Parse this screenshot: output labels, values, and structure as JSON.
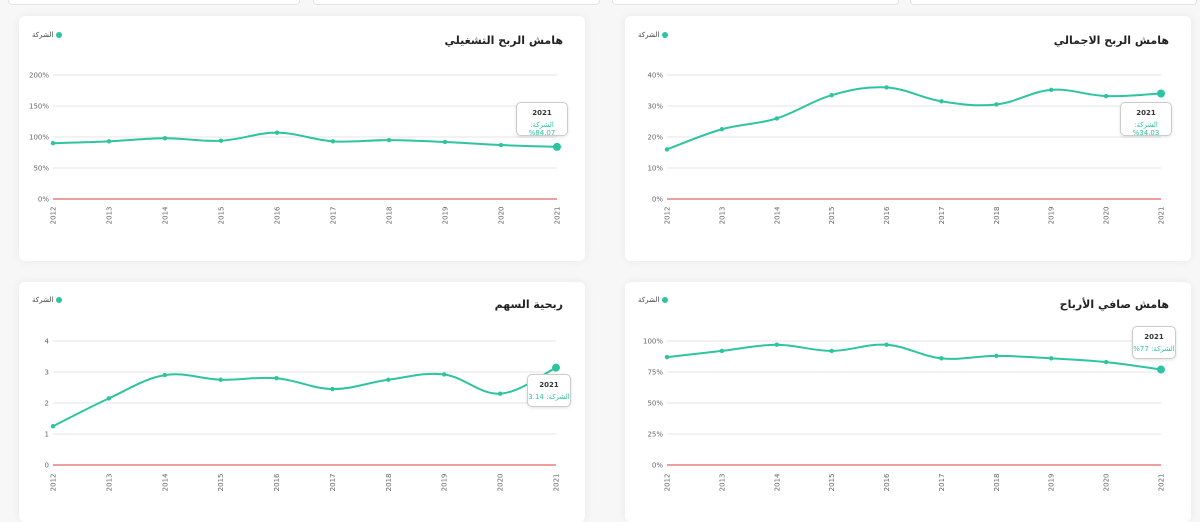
{
  "legend_label": "الشركة",
  "colors": {
    "series": "#2ec4a0",
    "zero_line": "#e06666",
    "grid": "#e5e5e5"
  },
  "chart_data": [
    {
      "id": "operating",
      "type": "line",
      "title": "هامش الربح التشغيلي",
      "x": [
        "2012",
        "2013",
        "2014",
        "2015",
        "2016",
        "2017",
        "2018",
        "2019",
        "2020",
        "2021"
      ],
      "series": [
        {
          "name": "الشركة",
          "values": [
            90,
            93,
            98,
            94,
            107,
            93,
            95,
            92,
            87,
            84.07
          ]
        }
      ],
      "ylim": [
        0,
        200
      ],
      "y_ticks": [
        0,
        50,
        100,
        150,
        200
      ],
      "y_tick_labels": [
        "0%",
        "50%",
        "100%",
        "150%",
        "200%"
      ],
      "tooltip": {
        "year": "2021",
        "label": "الشركة:",
        "value": "84.07%"
      }
    },
    {
      "id": "gross",
      "type": "line",
      "title": "هامش الربح الاجمالي",
      "x": [
        "2012",
        "2013",
        "2014",
        "2015",
        "2016",
        "2017",
        "2018",
        "2019",
        "2020",
        "2021"
      ],
      "series": [
        {
          "name": "الشركة",
          "values": [
            16,
            22.5,
            26,
            33.5,
            36,
            31.5,
            30.5,
            35.2,
            33.2,
            34.03
          ]
        }
      ],
      "ylim": [
        0,
        40
      ],
      "y_ticks": [
        0,
        10,
        20,
        30,
        40
      ],
      "y_tick_labels": [
        "0%",
        "10%",
        "20%",
        "30%",
        "40%"
      ],
      "tooltip": {
        "year": "2021",
        "label": "الشركة:",
        "value": "34.03%"
      }
    },
    {
      "id": "eps",
      "type": "line",
      "title": "ربحية السهم",
      "x": [
        "2012",
        "2013",
        "2014",
        "2015",
        "2016",
        "2017",
        "2018",
        "2019",
        "2020",
        "2021"
      ],
      "series": [
        {
          "name": "الشركة",
          "values": [
            1.25,
            2.15,
            2.9,
            2.75,
            2.8,
            2.45,
            2.75,
            2.92,
            2.3,
            3.14
          ]
        }
      ],
      "ylim": [
        0,
        4
      ],
      "y_ticks": [
        0,
        1,
        2,
        3,
        4
      ],
      "y_tick_labels": [
        "0",
        "1",
        "2",
        "3",
        "4"
      ],
      "tooltip": {
        "year": "2021",
        "label": "الشركة:",
        "value": "3.14"
      }
    },
    {
      "id": "net",
      "type": "line",
      "title": "هامش صافي الأرباح",
      "x": [
        "2012",
        "2013",
        "2014",
        "2015",
        "2016",
        "2017",
        "2018",
        "2019",
        "2020",
        "2021"
      ],
      "series": [
        {
          "name": "الشركة",
          "values": [
            87,
            92,
            97,
            92,
            97,
            86,
            88,
            86,
            83,
            77
          ]
        }
      ],
      "ylim": [
        0,
        100
      ],
      "y_ticks": [
        0,
        25,
        50,
        75,
        100
      ],
      "y_tick_labels": [
        "0%",
        "25%",
        "50%",
        "75%",
        "100%"
      ],
      "tooltip": {
        "year": "2021",
        "label": "الشركة:",
        "value": "77%"
      }
    }
  ]
}
